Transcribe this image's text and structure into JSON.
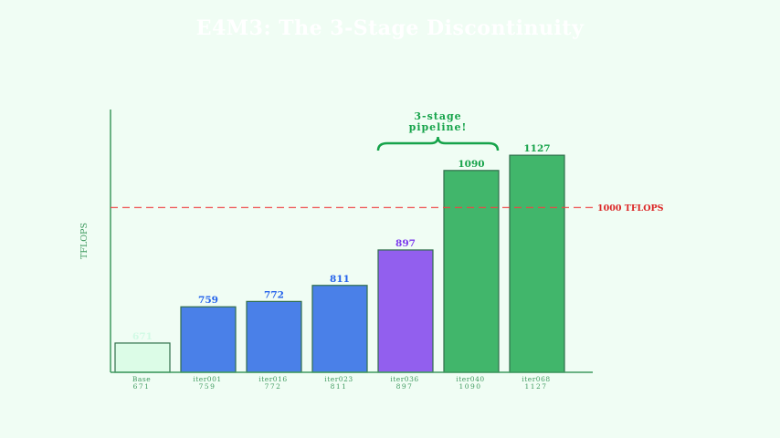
{
  "chart_data": {
    "type": "bar",
    "title": "E4M3: The 3-Stage Discontinuity",
    "xlabel": "",
    "ylabel": "TFLOPS",
    "ylim": [
      600,
      1238
    ],
    "grid": false,
    "categories": [
      "Base",
      "iter001",
      "iter016",
      "iter023",
      "iter036",
      "iter040",
      "iter068"
    ],
    "values": [
      671,
      759,
      772,
      811,
      897,
      1090,
      1127
    ],
    "tick_labels": [
      [
        "Base",
        "671"
      ],
      [
        "iter001",
        "759"
      ],
      [
        "iter016",
        "772"
      ],
      [
        "iter023",
        "811"
      ],
      [
        "iter036",
        "897"
      ],
      [
        "iter040",
        "1090"
      ],
      [
        "iter068",
        "1127"
      ]
    ],
    "bar_colors": [
      "#dcfce7",
      "#4a80e8",
      "#4a80e8",
      "#4a80e8",
      "#925fee",
      "#41b66b",
      "#41b66b"
    ],
    "value_label_colors": [
      "#d1fae5",
      "#2563eb",
      "#2563eb",
      "#2563eb",
      "#7c3aed",
      "#16a34a",
      "#16a34a"
    ],
    "reference_line": {
      "value": 1000,
      "label": "1000 TFLOPS",
      "color": "#ef4444",
      "style": "dashed"
    },
    "annotations": [
      {
        "text_lines": [
          "3-stage",
          "pipeline!"
        ],
        "spans": [
          "iter036",
          "iter040"
        ],
        "shape": "curly-brace",
        "color": "#16a34a"
      }
    ]
  }
}
